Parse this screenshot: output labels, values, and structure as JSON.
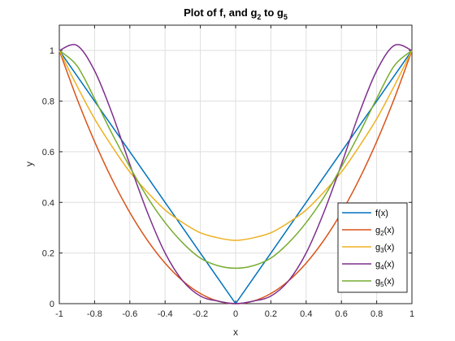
{
  "chart_data": {
    "type": "line",
    "title": {
      "prefix": "Plot of f, and g",
      "sub1": "2",
      "middle": " to g",
      "sub2": "5"
    },
    "xlabel": "x",
    "ylabel": "y",
    "xlim": [
      -1,
      1
    ],
    "ylim": [
      0,
      1.1
    ],
    "xticks": [
      "-1",
      "-0.8",
      "-0.6",
      "-0.4",
      "-0.2",
      "0",
      "0.2",
      "0.4",
      "0.6",
      "0.8",
      "1"
    ],
    "yticks": [
      "0",
      "0.2",
      "0.4",
      "0.6",
      "0.8",
      "1"
    ],
    "grid": true,
    "legend_position": "bottom-right",
    "x": [
      -1,
      -0.9,
      -0.8,
      -0.7,
      -0.6,
      -0.5,
      -0.4,
      -0.3,
      -0.2,
      -0.1,
      0,
      0.1,
      0.2,
      0.3,
      0.4,
      0.5,
      0.6,
      0.7,
      0.8,
      0.9,
      1
    ],
    "series": [
      {
        "name": "f(x)",
        "legend": {
          "base": "f(x)",
          "sub": "",
          "tail": ""
        },
        "color": "#0072BD",
        "values": [
          1,
          0.9,
          0.8,
          0.7,
          0.6,
          0.5,
          0.4,
          0.3,
          0.2,
          0.1,
          0,
          0.1,
          0.2,
          0.3,
          0.4,
          0.5,
          0.6,
          0.7,
          0.8,
          0.9,
          1
        ]
      },
      {
        "name": "g2(x)",
        "legend": {
          "base": "g",
          "sub": "2",
          "tail": "(x)"
        },
        "color": "#D95319",
        "values": [
          1,
          0.81,
          0.64,
          0.49,
          0.36,
          0.25,
          0.16,
          0.09,
          0.04,
          0.01,
          0,
          0.01,
          0.04,
          0.09,
          0.16,
          0.25,
          0.36,
          0.49,
          0.64,
          0.81,
          1
        ]
      },
      {
        "name": "g3(x)",
        "legend": {
          "base": "g",
          "sub": "3",
          "tail": "(x)"
        },
        "color": "#EDB120",
        "values": [
          1,
          0.86,
          0.73,
          0.62,
          0.52,
          0.44,
          0.37,
          0.32,
          0.28,
          0.26,
          0.25,
          0.26,
          0.28,
          0.32,
          0.37,
          0.44,
          0.52,
          0.62,
          0.73,
          0.86,
          1
        ]
      },
      {
        "name": "g4(x)",
        "legend": {
          "base": "g",
          "sub": "4",
          "tail": "(x)"
        },
        "color": "#7E2F8E",
        "values": [
          1,
          1.02,
          0.92,
          0.75,
          0.55,
          0.36,
          0.2,
          0.09,
          0.03,
          0.01,
          0,
          0.01,
          0.03,
          0.09,
          0.2,
          0.36,
          0.55,
          0.75,
          0.92,
          1.02,
          1
        ]
      },
      {
        "name": "g5(x)",
        "legend": {
          "base": "g",
          "sub": "5",
          "tail": "(x)"
        },
        "color": "#77AC30",
        "values": [
          1,
          0.94,
          0.81,
          0.67,
          0.54,
          0.42,
          0.32,
          0.24,
          0.18,
          0.15,
          0.14,
          0.15,
          0.18,
          0.24,
          0.32,
          0.42,
          0.54,
          0.67,
          0.81,
          0.94,
          1
        ]
      }
    ]
  }
}
